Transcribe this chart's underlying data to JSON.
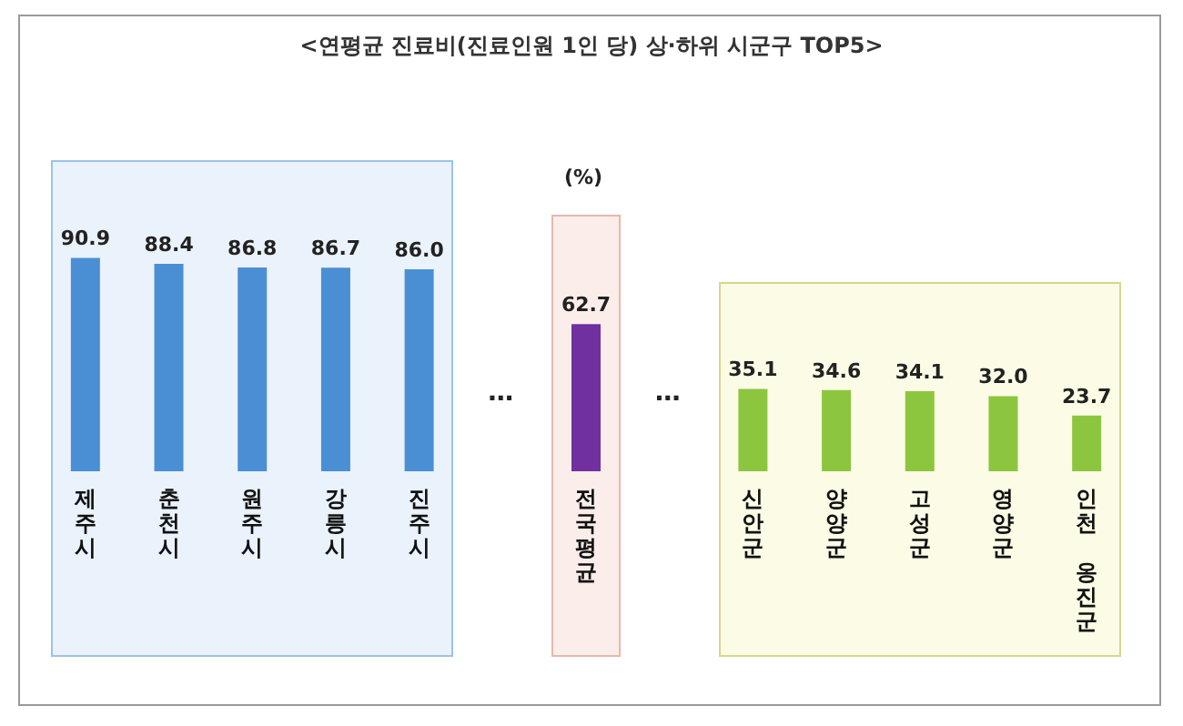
{
  "chart_data": {
    "type": "bar",
    "title": "<연평균 진료비(진료인원 1인 당) 상·하위 시군구 TOP5>",
    "ylabel": "(%)",
    "categories": [
      "제주시",
      "춘천시",
      "원주시",
      "강릉시",
      "진주시",
      null,
      "전국평균",
      null,
      "신안군",
      "양양군",
      "고성군",
      "영양군",
      "인천 옹진군"
    ],
    "values": [
      90.9,
      88.4,
      86.8,
      86.7,
      86.0,
      null,
      62.7,
      null,
      35.1,
      34.6,
      34.1,
      32.0,
      23.7
    ],
    "colors": [
      "#4a8fd4",
      "#4a8fd4",
      "#4a8fd4",
      "#4a8fd4",
      "#4a8fd4",
      null,
      "#7030a0",
      null,
      "#8cc63f",
      "#8cc63f",
      "#8cc63f",
      "#8cc63f",
      "#8cc63f"
    ],
    "annotations": [
      "…",
      "…"
    ],
    "value_labels": [
      "90.9",
      "88.4",
      "86.8",
      "86.7",
      "86.0",
      null,
      "62.7",
      null,
      "35.1",
      "34.6",
      "34.1",
      "32.0",
      "23.7"
    ]
  }
}
